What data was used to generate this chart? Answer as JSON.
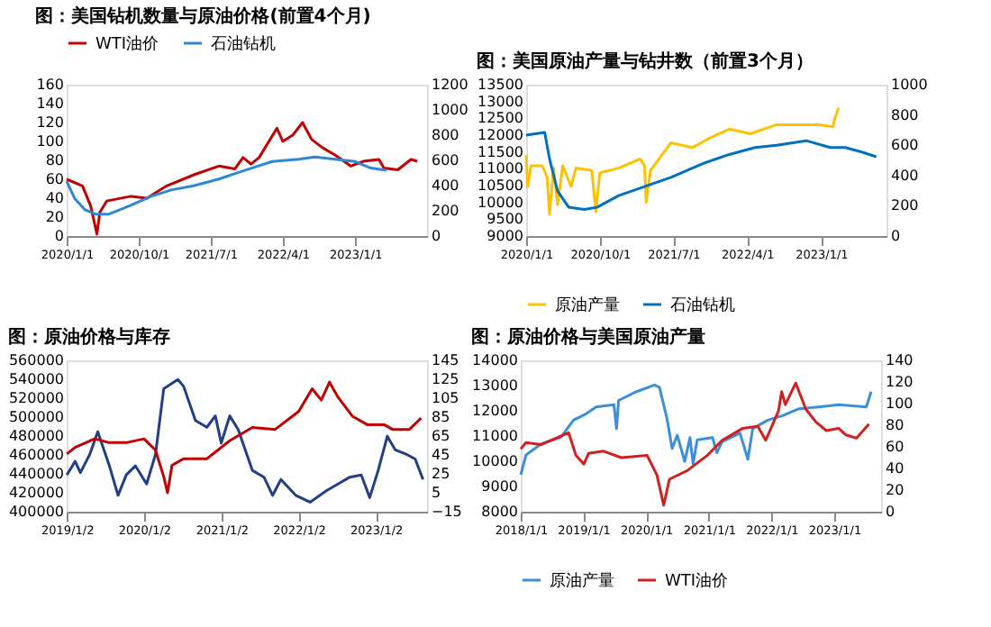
{
  "chart_data": [
    {
      "type": "line",
      "title": "图：美国钻机数量与原油价格(前置4个月)",
      "legend": "top",
      "grid": false,
      "xlim": [
        "2020-01-01",
        "2023-10-01"
      ],
      "xticks": [
        {
          "value": "2020-01-01",
          "label": "2020/1/1"
        },
        {
          "value": "2020-10-01",
          "label": "2020/10/1"
        },
        {
          "value": "2021-07-01",
          "label": "2021/7/1"
        },
        {
          "value": "2022-04-01",
          "label": "2022/4/1"
        },
        {
          "value": "2023-01-01",
          "label": "2023/1/1"
        }
      ],
      "ylim": [
        0,
        160
      ],
      "yticks": [
        0,
        20,
        40,
        60,
        80,
        100,
        120,
        140,
        160
      ],
      "y2lim": [
        0,
        1200
      ],
      "y2ticks": [
        0,
        200,
        400,
        600,
        800,
        1000,
        1200
      ],
      "series": [
        {
          "name": "WTI油价",
          "color": "#c00000",
          "x": [
            "2020-01-01",
            "2020-03-01",
            "2020-04-01",
            "2020-04-25",
            "2020-05-06",
            "2020-06-01",
            "2020-09-01",
            "2020-11-01",
            "2021-01-15",
            "2021-05-01",
            "2021-08-01",
            "2021-10-01",
            "2021-11-01",
            "2021-12-01",
            "2022-01-01",
            "2022-03-10",
            "2022-04-01",
            "2022-05-10",
            "2022-06-15",
            "2022-07-20",
            "2022-09-01",
            "2022-10-15",
            "2022-12-15",
            "2023-02-01",
            "2023-04-01",
            "2023-04-20",
            "2023-06-12",
            "2023-08-01",
            "2023-08-25"
          ],
          "values": [
            60,
            53,
            32,
            2,
            25,
            37,
            42,
            40,
            53,
            65,
            74,
            71,
            83,
            76,
            83,
            114,
            100,
            107,
            120,
            102,
            93,
            86,
            74,
            79,
            81,
            72,
            70,
            81,
            79
          ]
        },
        {
          "name": "石油钻机",
          "color": "#2e86d6",
          "axis": "y2",
          "x": [
            "2020-01-01",
            "2020-02-01",
            "2020-03-10",
            "2020-04-20",
            "2020-06-10",
            "2020-09-01",
            "2020-11-15",
            "2021-02-01",
            "2021-05-01",
            "2021-08-01",
            "2021-11-10",
            "2022-02-20",
            "2022-06-01",
            "2022-08-01",
            "2022-10-15",
            "2023-01-01",
            "2023-03-01",
            "2023-05-01"
          ],
          "values": [
            435,
            296,
            209,
            174,
            174,
            243,
            313,
            365,
            400,
            452,
            522,
            591,
            609,
            626,
            609,
            591,
            539,
            522
          ]
        }
      ]
    },
    {
      "type": "line",
      "title": "图：美国原油产量与钻井数（前置3个月）",
      "legend": "bottom",
      "grid": false,
      "xlim": [
        "2020-01-01",
        "2023-09-01"
      ],
      "xticks": [
        {
          "value": "2020-01-01",
          "label": "2020/1/1"
        },
        {
          "value": "2020-10-01",
          "label": "2020/10/1"
        },
        {
          "value": "2021-07-01",
          "label": "2021/7/1"
        },
        {
          "value": "2022-04-01",
          "label": "2022/4/1"
        },
        {
          "value": "2023-01-01",
          "label": "2023/1/1"
        }
      ],
      "ylim": [
        9000,
        13500
      ],
      "yticks": [
        9000,
        9500,
        10000,
        10500,
        11000,
        11500,
        12000,
        12500,
        13000,
        13500
      ],
      "y2lim": [
        0,
        1000
      ],
      "y2ticks": [
        0,
        200,
        400,
        600,
        800,
        1000
      ],
      "series": [
        {
          "name": "原油产量",
          "color": "#ffc000",
          "x": [
            "2020-01-01",
            "2020-01-07",
            "2020-01-19",
            "2020-03-01",
            "2020-03-19",
            "2020-03-28",
            "2020-04-12",
            "2020-04-27",
            "2020-05-16",
            "2020-06-16",
            "2020-07-04",
            "2020-09-01",
            "2020-09-16",
            "2020-10-01",
            "2020-12-10",
            "2021-02-28",
            "2021-03-16",
            "2021-03-22",
            "2021-04-07",
            "2021-06-22",
            "2021-09-10",
            "2021-11-10",
            "2022-01-25",
            "2022-04-13",
            "2022-07-20",
            "2022-10-07",
            "2022-12-25",
            "2023-02-13",
            "2023-02-22",
            "2023-03-07"
          ],
          "values": [
            11400,
            10470,
            11090,
            11090,
            10750,
            9650,
            11020,
            9930,
            11090,
            10470,
            11020,
            10950,
            9720,
            10880,
            11020,
            11290,
            11090,
            10000,
            10950,
            11770,
            11630,
            11900,
            12180,
            12040,
            12310,
            12310,
            12310,
            12250,
            12520,
            12820
          ]
        },
        {
          "name": "石油钻机",
          "color": "#0070c0",
          "axis": "y2",
          "x": [
            "2020-01-01",
            "2020-03-10",
            "2020-03-28",
            "2020-04-27",
            "2020-06-07",
            "2020-08-04",
            "2020-09-22",
            "2020-12-10",
            "2021-03-16",
            "2021-06-22",
            "2021-10-19",
            "2022-01-25",
            "2022-05-01",
            "2022-07-20",
            "2022-11-07",
            "2023-02-04",
            "2023-04-01",
            "2023-06-01",
            "2023-07-25"
          ],
          "values": [
            667,
            685,
            509,
            297,
            191,
            176,
            191,
            267,
            327,
            388,
            479,
            539,
            585,
            600,
            630,
            585,
            585,
            555,
            524
          ]
        }
      ]
    },
    {
      "type": "line",
      "title": "图：原油价格与库存",
      "grid": false,
      "xlim": [
        "2019-01-01",
        "2023-09-01"
      ],
      "xticks": [
        {
          "value": "2019-01-02",
          "label": "2019/1/2"
        },
        {
          "value": "2020-01-02",
          "label": "2020/1/2"
        },
        {
          "value": "2021-01-02",
          "label": "2021/1/2"
        },
        {
          "value": "2022-01-02",
          "label": "2022/1/2"
        },
        {
          "value": "2023-01-02",
          "label": "2023/1/2"
        }
      ],
      "ylim": [
        400000,
        560000
      ],
      "yticks": [
        400000,
        420000,
        440000,
        460000,
        480000,
        500000,
        520000,
        540000,
        560000
      ],
      "y2lim": [
        -15,
        145
      ],
      "y2ticks": [
        -15,
        5,
        25,
        45,
        65,
        85,
        105,
        125,
        145
      ],
      "series": [
        {
          "color": "#203f85",
          "x": [
            "2019-01-02",
            "2019-02-10",
            "2019-03-07",
            "2019-04-20",
            "2019-05-28",
            "2019-07-22",
            "2019-09-01",
            "2019-10-10",
            "2019-11-22",
            "2020-01-14",
            "2020-02-25",
            "2020-04-04",
            "2020-06-10",
            "2020-07-07",
            "2020-09-01",
            "2020-10-25",
            "2020-12-04",
            "2021-01-01",
            "2021-02-10",
            "2021-03-22",
            "2021-05-28",
            "2021-07-22",
            "2021-09-01",
            "2021-10-10",
            "2021-12-19",
            "2022-02-25",
            "2022-05-13",
            "2022-07-07",
            "2022-09-01",
            "2022-10-25",
            "2022-12-04",
            "2023-01-13",
            "2023-02-25",
            "2023-04-04",
            "2023-05-28",
            "2023-07-07",
            "2023-08-13"
          ],
          "values": [
            438900,
            453300,
            441300,
            460500,
            484500,
            448500,
            417300,
            438900,
            448500,
            429300,
            460500,
            530100,
            539700,
            532500,
            496500,
            489300,
            501300,
            472500,
            501300,
            486900,
            443700,
            436500,
            417300,
            434100,
            417300,
            410100,
            422100,
            429300,
            436500,
            438900,
            414900,
            443700,
            479700,
            465300,
            460500,
            455700,
            434100
          ]
        },
        {
          "color": "#c00000",
          "axis": "y2",
          "x": [
            "2019-01-02",
            "2019-02-10",
            "2019-05-13",
            "2019-07-22",
            "2019-10-10",
            "2020-01-02",
            "2020-02-25",
            "2020-04-04",
            "2020-04-22",
            "2020-05-13",
            "2020-07-07",
            "2020-10-25",
            "2021-02-10",
            "2021-05-28",
            "2021-09-13",
            "2022-01-02",
            "2022-03-07",
            "2022-04-19",
            "2022-05-28",
            "2022-07-07",
            "2022-09-13",
            "2022-11-22",
            "2023-02-10",
            "2023-03-22",
            "2023-06-10",
            "2023-08-04"
          ],
          "values": [
            46,
            53,
            62,
            58,
            58,
            62,
            50,
            22,
            5,
            34,
            41,
            41,
            60,
            74,
            72,
            91,
            115,
            103,
            122,
            106,
            86,
            77,
            77,
            72,
            72,
            84
          ]
        }
      ]
    },
    {
      "type": "line",
      "title": "图：原油价格与美国原油产量",
      "legend": "bottom",
      "grid": false,
      "xlim": [
        "2018-01-01",
        "2023-10-01"
      ],
      "xticks": [
        {
          "value": "2018-01-01",
          "label": "2018/1/1"
        },
        {
          "value": "2019-01-01",
          "label": "2019/1/1"
        },
        {
          "value": "2020-01-01",
          "label": "2020/1/1"
        },
        {
          "value": "2021-01-01",
          "label": "2021/1/1"
        },
        {
          "value": "2022-01-01",
          "label": "2022/1/1"
        },
        {
          "value": "2023-01-01",
          "label": "2023/1/1"
        }
      ],
      "ylim": [
        8000,
        14000
      ],
      "yticks": [
        8000,
        9000,
        10000,
        11000,
        12000,
        13000,
        14000
      ],
      "y2lim": [
        0,
        140
      ],
      "y2ticks": [
        0,
        20,
        40,
        60,
        80,
        100,
        120,
        140
      ],
      "series": [
        {
          "name": "原油产量",
          "color": "#3a8fd8",
          "x": [
            "2018-01-01",
            "2018-02-01",
            "2018-04-28",
            "2018-08-22",
            "2018-11-04",
            "2019-01-19",
            "2019-03-16",
            "2019-06-28",
            "2019-07-13",
            "2019-07-25",
            "2019-11-07",
            "2020-02-19",
            "2020-03-19",
            "2020-05-01",
            "2020-06-01",
            "2020-07-01",
            "2020-08-13",
            "2020-09-13",
            "2020-10-01",
            "2020-10-25",
            "2021-01-22",
            "2021-02-16",
            "2021-03-19",
            "2021-07-01",
            "2021-08-16",
            "2021-09-13",
            "2021-12-10",
            "2022-03-07",
            "2022-06-04",
            "2022-10-01",
            "2023-01-28",
            "2023-07-07",
            "2023-08-04"
          ],
          "values": [
            9470,
            10250,
            10680,
            10940,
            11630,
            11890,
            12150,
            12240,
            11290,
            12410,
            12760,
            13020,
            12930,
            11720,
            10510,
            11030,
            9990,
            10940,
            9900,
            10850,
            10940,
            10340,
            10770,
            11110,
            10080,
            11290,
            11630,
            11810,
            12070,
            12150,
            12240,
            12150,
            12760
          ]
        },
        {
          "name": "WTI油价",
          "color": "#d02020",
          "axis": "y2",
          "x": [
            "2018-01-01",
            "2018-02-01",
            "2018-04-28",
            "2018-07-25",
            "2018-10-07",
            "2018-11-19",
            "2019-01-04",
            "2019-01-31",
            "2019-04-28",
            "2019-08-10",
            "2020-01-07",
            "2020-03-04",
            "2020-04-13",
            "2020-05-16",
            "2020-08-28",
            "2020-12-22",
            "2021-03-19",
            "2021-07-16",
            "2021-10-13",
            "2021-11-28",
            "2022-02-10",
            "2022-03-01",
            "2022-03-22",
            "2022-05-22",
            "2022-07-19",
            "2022-09-16",
            "2022-11-16",
            "2023-01-28",
            "2023-03-10",
            "2023-05-10",
            "2023-07-22"
          ],
          "values": [
            58,
            64,
            62,
            68,
            73,
            52,
            44,
            54,
            56,
            50,
            52,
            34,
            6,
            30,
            38,
            52,
            66,
            77,
            79,
            66,
            93,
            111,
            99,
            119,
            95,
            83,
            75,
            77,
            71,
            68,
            81
          ]
        }
      ]
    }
  ]
}
